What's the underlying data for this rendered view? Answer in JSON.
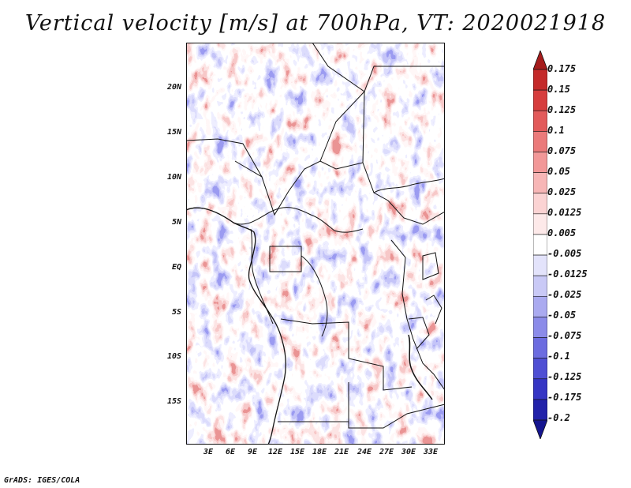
{
  "map": {
    "title": "Vertical velocity [m/s] at 700hPa, VT: 2020021918",
    "lat_labels": [
      "20N",
      "15N",
      "10N",
      "5N",
      "EQ",
      "5S",
      "10S",
      "15S"
    ],
    "lon_labels": [
      "3E",
      "6E",
      "9E",
      "12E",
      "15E",
      "18E",
      "21E",
      "24E",
      "27E",
      "30E",
      "33E"
    ],
    "colorbar": {
      "labels": [
        "0.175",
        "0.15",
        "0.125",
        "0.1",
        "0.075",
        "0.05",
        "0.025",
        "0.0125",
        "0.005",
        "-0.005",
        "-0.0125",
        "-0.025",
        "-0.05",
        "-0.075",
        "-0.1",
        "-0.125",
        "-0.175",
        "-0.2"
      ],
      "colors": [
        "#a51c1c",
        "#c42a2a",
        "#d63d3d",
        "#e25a5a",
        "#eb7a7a",
        "#f29898",
        "#f7b6b6",
        "#fbd3d3",
        "#fde9e9",
        "#ffffff",
        "#e3e3fb",
        "#c9c9f6",
        "#aaaaf0",
        "#8b8be9",
        "#6c6ce0",
        "#4f4fd4",
        "#3535c4",
        "#2222aa",
        "#15158f"
      ]
    },
    "credit": "GrADS: IGES/COLA"
  }
}
